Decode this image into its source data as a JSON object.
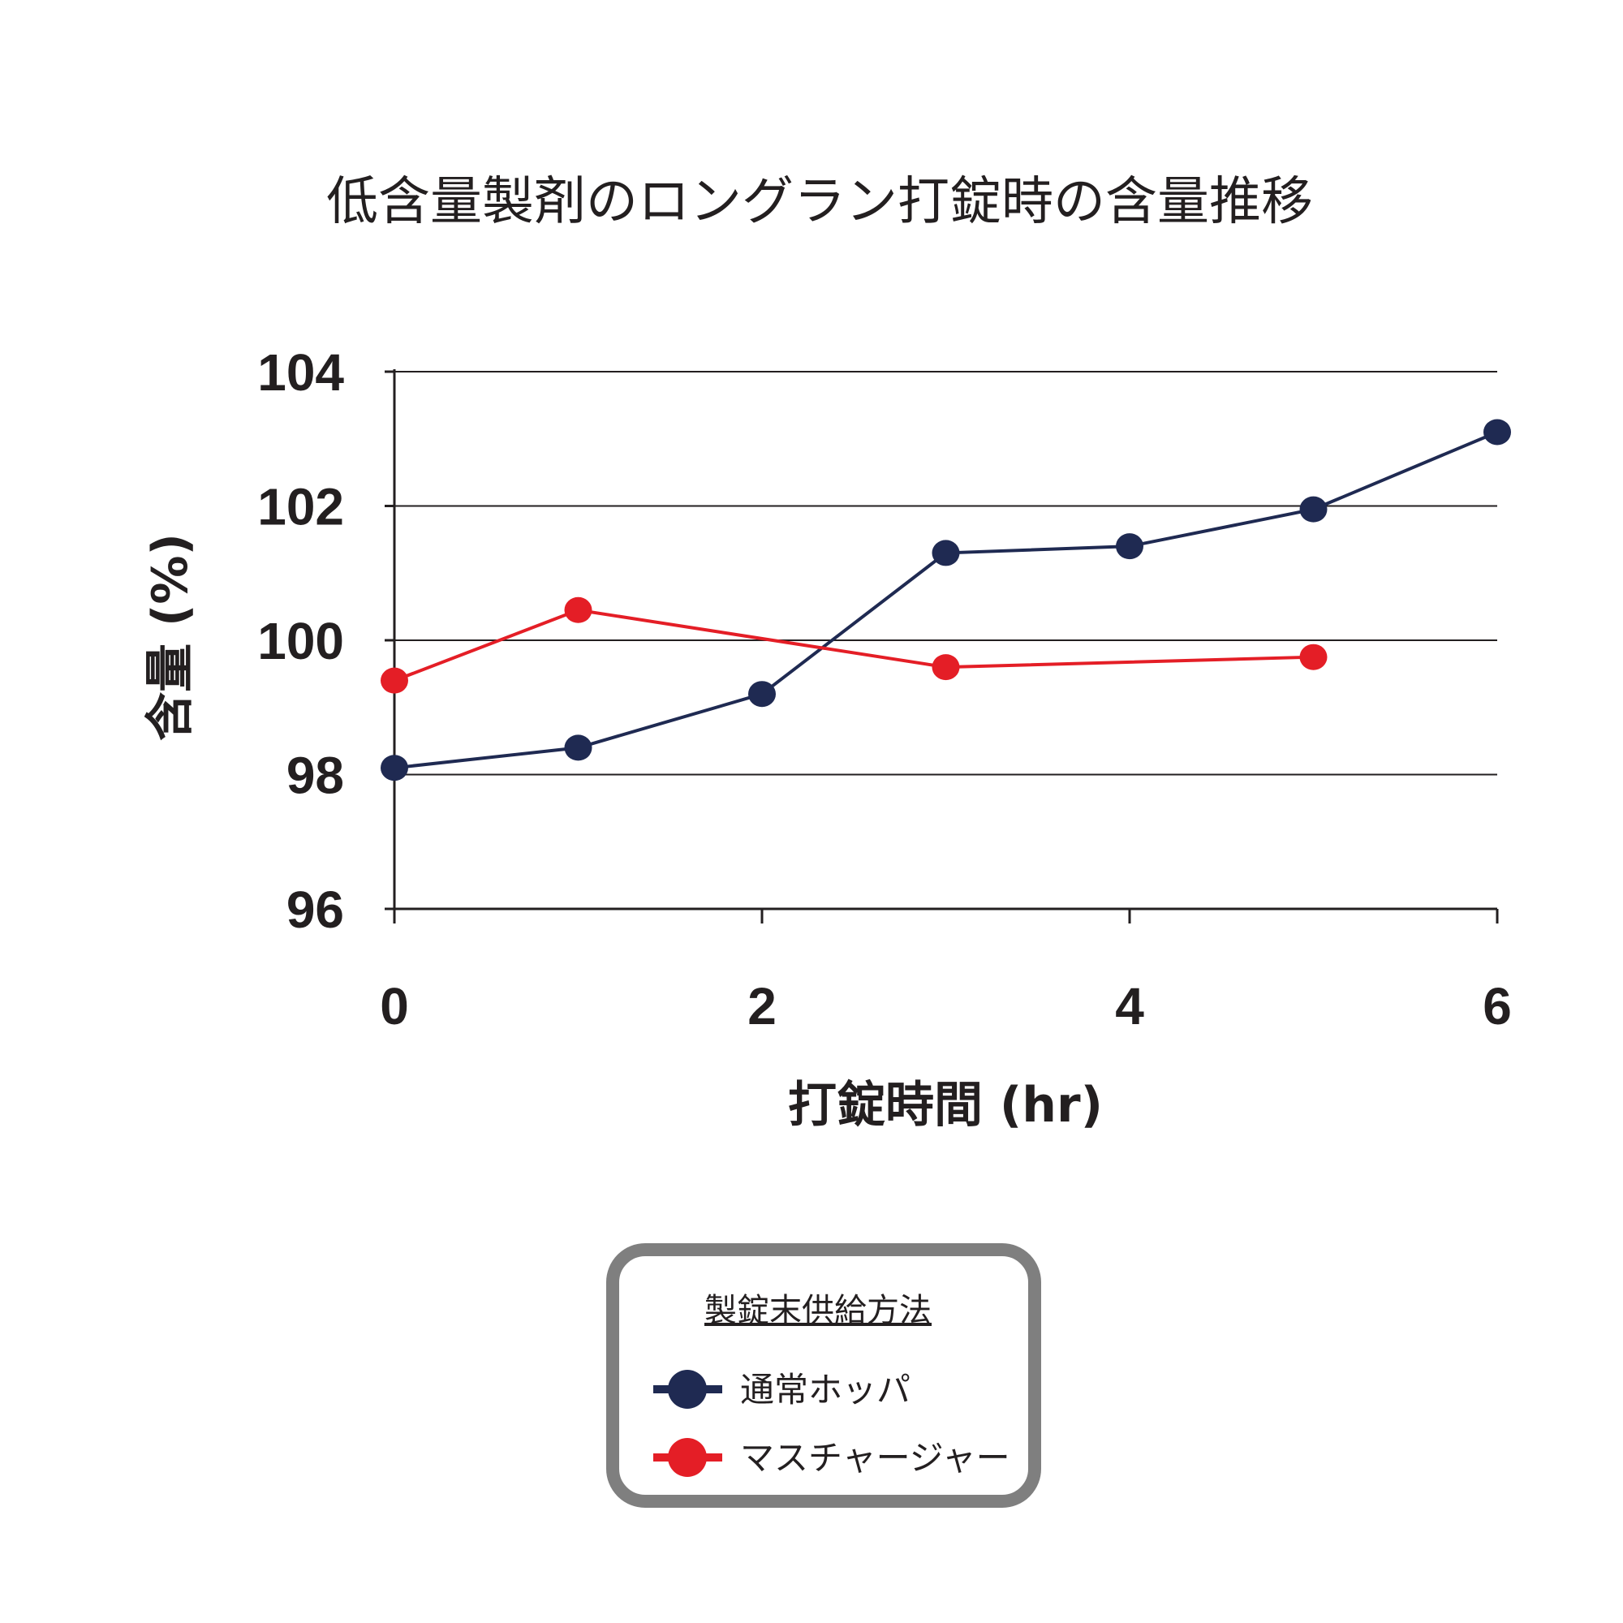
{
  "chart_data": {
    "type": "line",
    "title": "低含量製剤のロングラン打錠時の含量推移",
    "xlabel": "打錠時間 (hr)",
    "ylabel": "含量 (%)",
    "xlim": [
      0,
      6
    ],
    "ylim": [
      96,
      104
    ],
    "x_ticks": [
      "0",
      "2",
      "4",
      "6"
    ],
    "y_ticks": [
      "104",
      "102",
      "100",
      "98",
      "96"
    ],
    "grid": true,
    "legend": {
      "title": "製錠末供給方法",
      "placement": "bottom-center"
    },
    "series": [
      {
        "name": "通常ホッパ",
        "color": "#1f2a52",
        "x": [
          0,
          1,
          2,
          3,
          4,
          5,
          6
        ],
        "y": [
          98.1,
          98.4,
          99.2,
          101.3,
          101.4,
          101.95,
          103.1
        ]
      },
      {
        "name": "マスチャージャー",
        "color": "#e41e26",
        "x": [
          0,
          1,
          3,
          5
        ],
        "y": [
          99.4,
          100.45,
          99.6,
          99.75
        ]
      }
    ]
  }
}
